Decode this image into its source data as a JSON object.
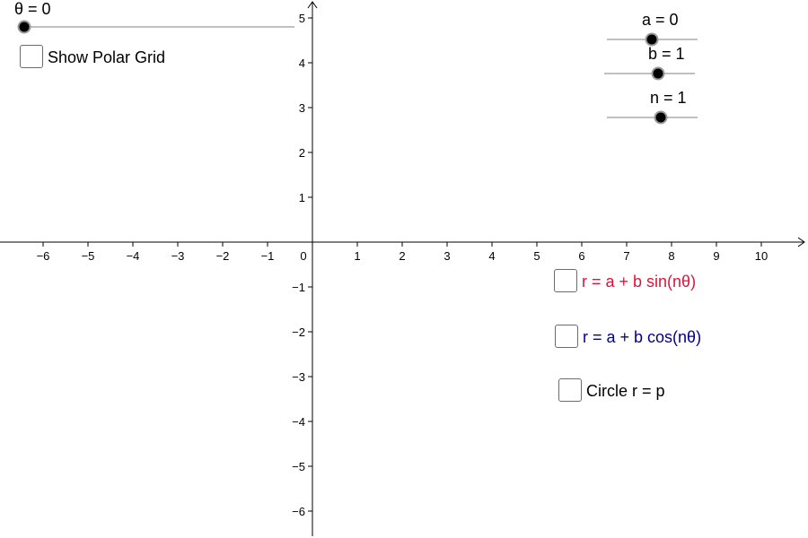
{
  "sliders": [
    {
      "id": "theta",
      "label": "θ = 0",
      "value": 0
    },
    {
      "id": "a",
      "label": "a = 0",
      "value": 0
    },
    {
      "id": "b",
      "label": "b = 1",
      "value": 1
    },
    {
      "id": "n",
      "label": "n = 1",
      "value": 1
    }
  ],
  "checkboxes": [
    {
      "id": "polar-grid",
      "label": "Show Polar Grid",
      "checked": false,
      "color": "#000000"
    },
    {
      "id": "sin",
      "label": "r = a + b sin(nθ)",
      "checked": false,
      "color": "#dc143c"
    },
    {
      "id": "cos",
      "label": "r = a + b cos(nθ)",
      "checked": false,
      "color": "#00008b"
    },
    {
      "id": "circle",
      "label": "Circle r = p",
      "checked": false,
      "color": "#000000"
    }
  ],
  "axes": {
    "x_ticks": [
      "−6",
      "−5",
      "−4",
      "−3",
      "−2",
      "−1",
      "0",
      "1",
      "2",
      "3",
      "4",
      "5",
      "6",
      "7",
      "8",
      "9",
      "10"
    ],
    "y_ticks": [
      "5",
      "4",
      "3",
      "2",
      "1",
      "−1",
      "−2",
      "−3",
      "−4",
      "−5",
      "−6"
    ],
    "x_range": [
      -6.9,
      11
    ],
    "y_range": [
      -6.5,
      5.4
    ]
  },
  "colors": {
    "axis": "#000000",
    "slider_track": "#808080",
    "slider_knob": "#000000",
    "sin_curve": "#dc143c",
    "cos_curve": "#00008b"
  }
}
